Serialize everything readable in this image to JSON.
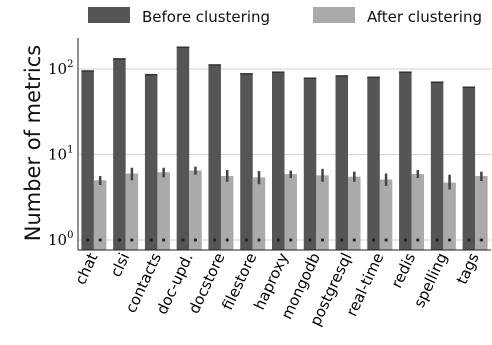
{
  "chart_data": {
    "type": "bar",
    "title": "",
    "xlabel": "",
    "ylabel": "Number of metrics",
    "yscale": "log",
    "ylim": [
      0.8,
      250
    ],
    "yticks": [
      {
        "value": 1,
        "base": "10",
        "exp": "0"
      },
      {
        "value": 10,
        "base": "10",
        "exp": "1"
      },
      {
        "value": 100,
        "base": "10",
        "exp": "2"
      }
    ],
    "grid": "horizontal",
    "legend_position": "top",
    "categories": [
      "chat",
      "clsi",
      "contacts",
      "doc-upd.",
      "docstore",
      "filestore",
      "haproxy",
      "mongodb",
      "postgresql",
      "real-time",
      "redis",
      "spelling",
      "tags"
    ],
    "series": [
      {
        "name": "Before clustering",
        "color": "#555555",
        "values": [
          96,
          133,
          87,
          182,
          113,
          89,
          93,
          79,
          84,
          81,
          93,
          71,
          62
        ]
      },
      {
        "name": "After clustering",
        "color": "#aaaaaa",
        "values": [
          5.0,
          6.0,
          6.2,
          6.5,
          5.6,
          5.4,
          5.9,
          5.7,
          5.5,
          5.1,
          5.9,
          4.7,
          5.6
        ],
        "error_low": [
          4.4,
          5.0,
          5.4,
          5.8,
          4.8,
          4.5,
          5.3,
          4.8,
          4.8,
          4.3,
          5.3,
          3.9,
          4.9
        ],
        "error_high": [
          5.6,
          7.0,
          7.0,
          7.2,
          6.6,
          6.4,
          6.5,
          6.8,
          6.3,
          6.0,
          6.6,
          5.8,
          6.3
        ]
      }
    ]
  }
}
